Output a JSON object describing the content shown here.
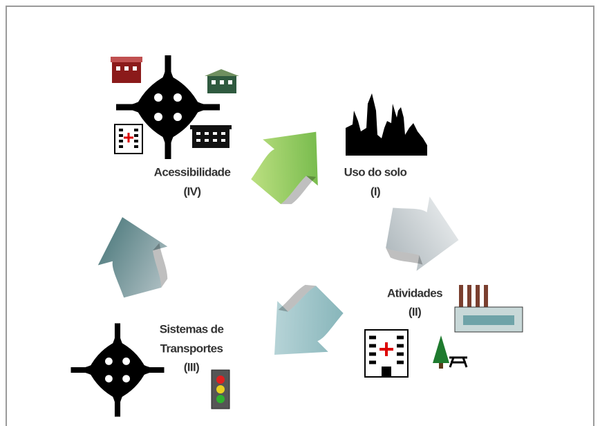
{
  "nodes": [
    {
      "lines": [
        "Uso do solo",
        "(I)"
      ]
    },
    {
      "lines": [
        "Atividades",
        "(II)"
      ]
    },
    {
      "lines": [
        "Sistemas de",
        "Transportes",
        "(III)"
      ]
    },
    {
      "lines": [
        "Acessibilidade",
        "(IV)"
      ]
    }
  ]
}
